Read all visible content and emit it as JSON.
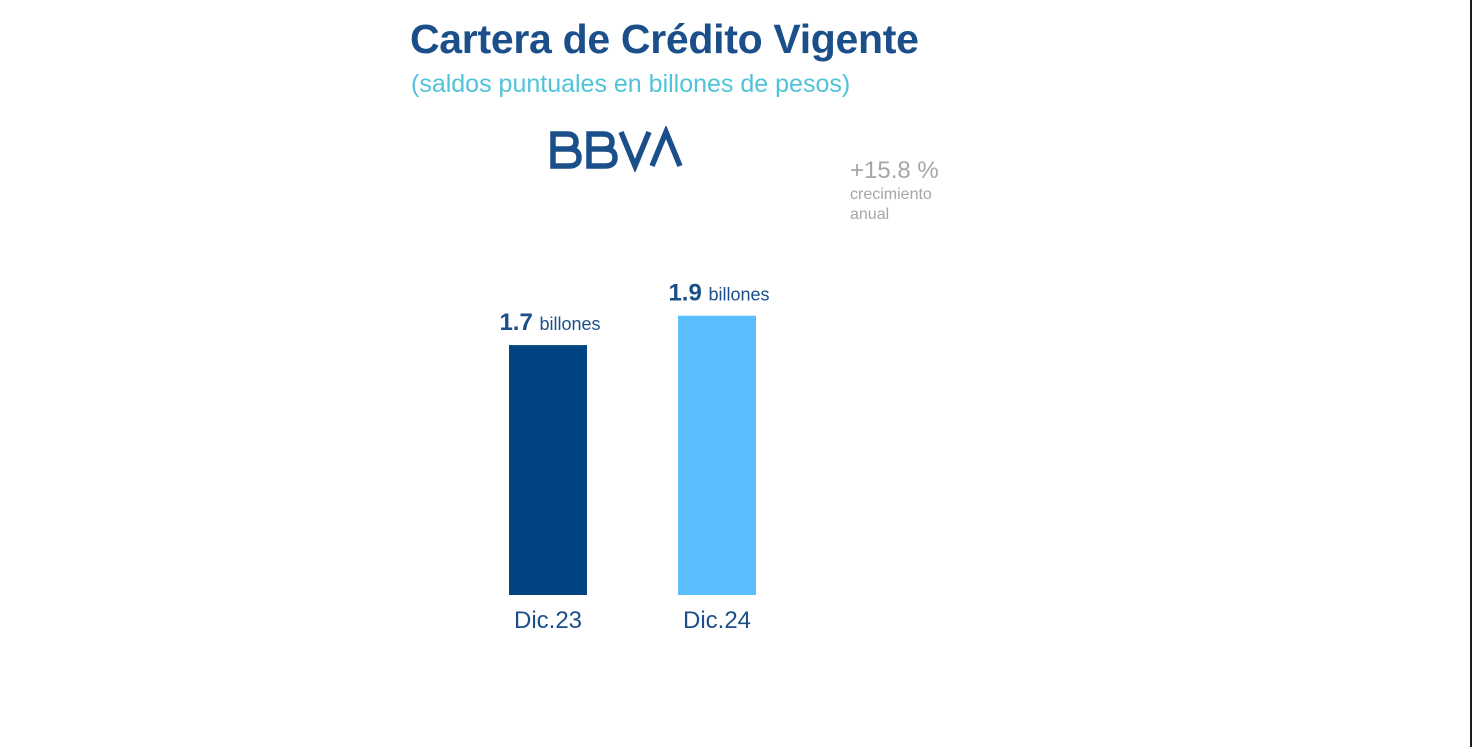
{
  "header": {
    "title": "Cartera de Crédito Vigente",
    "subtitle": "(saldos puntuales en billones de pesos)"
  },
  "logo": {
    "text": "BBVA",
    "color": "#1b4f8a"
  },
  "growth": {
    "value": "+15.8 %",
    "label_line1": "crecimiento",
    "label_line2": "anual"
  },
  "chart_data": {
    "type": "bar",
    "categories": [
      "Dic.23",
      "Dic.24"
    ],
    "values": [
      1.7,
      1.9
    ],
    "value_labels": [
      {
        "value": "1.7",
        "unit": "billones"
      },
      {
        "value": "1.9",
        "unit": "billones"
      }
    ],
    "colors": [
      "#004481",
      "#5bbeff"
    ],
    "label_color": "#1b4f8a",
    "title": "Cartera de Crédito Vigente",
    "subtitle": "(saldos puntuales en billones de pesos)",
    "xlabel": "",
    "ylabel": "",
    "ylim": [
      0,
      1.9
    ],
    "grid": false,
    "legend": "none"
  }
}
